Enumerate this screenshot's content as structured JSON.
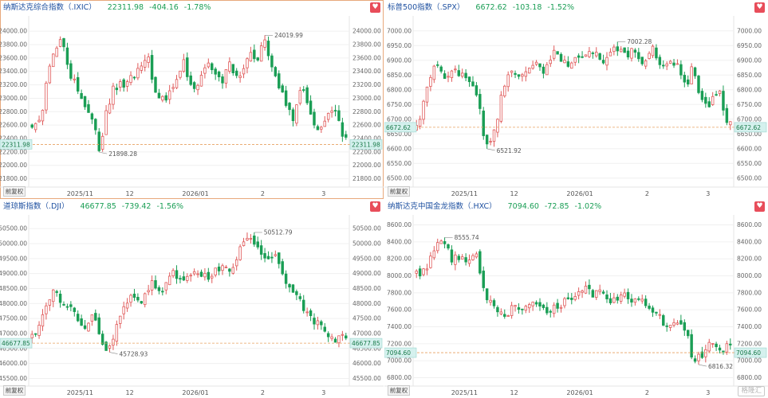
{
  "watermark": "格隆汇",
  "charts": [
    {
      "header": {
        "name": "纳斯达克综合指数（.IXIC）",
        "price": "22311.98",
        "change": "-404.16",
        "pct": "-1.78%"
      },
      "adj_button": "前复权",
      "last_tag": "22311.98",
      "annotations": {
        "high": "24019.99",
        "low": "21898.28"
      },
      "y_ticks": [
        "21800.00",
        "22000.00",
        "22200.00",
        "22400.00",
        "22600.00",
        "22800.00",
        "23000.00",
        "23200.00",
        "23400.00",
        "23600.00",
        "23800.00",
        "24000.00"
      ],
      "x_labels": [
        "2025/11",
        "12",
        "2026/01",
        "2",
        "3"
      ],
      "chart_data": {
        "type": "candlestick",
        "ylim": [
          21700,
          24180
        ],
        "last_value": 22311.98,
        "high": 24019.99,
        "low": 21898.28,
        "x_label_positions": [
          0.16,
          0.315,
          0.52,
          0.73,
          0.92
        ],
        "colors": {
          "up": "#e05a5a",
          "down": "#1a9e55",
          "last_line": "#e8a060"
        }
      }
    },
    {
      "header": {
        "name": "标普500指数（.SPX）",
        "price": "6672.62",
        "change": "-103.18",
        "pct": "-1.52%"
      },
      "adj_button": "前复权",
      "last_tag": "6672.62",
      "annotations": {
        "high": "7002.28",
        "low": "6521.92"
      },
      "y_ticks": [
        "6500.00",
        "6550.00",
        "6600.00",
        "6650.00",
        "6700.00",
        "6750.00",
        "6800.00",
        "6850.00",
        "6900.00",
        "6950.00",
        "7000.00"
      ],
      "x_labels": [
        "2025/11",
        "12",
        "2026/01",
        "2",
        "3"
      ],
      "chart_data": {
        "type": "candlestick",
        "ylim": [
          6475,
          7040
        ],
        "last_value": 6672.62,
        "high": 7002.28,
        "low": 6521.92,
        "x_label_positions": [
          0.16,
          0.315,
          0.52,
          0.73,
          0.92
        ],
        "colors": {
          "up": "#e05a5a",
          "down": "#1a9e55",
          "last_line": "#e8a060"
        }
      }
    },
    {
      "header": {
        "name": "道琼斯指数（.DJI）",
        "price": "46677.85",
        "change": "-739.42",
        "pct": "-1.56%"
      },
      "adj_button": "前复权",
      "last_tag": "46677.85",
      "annotations": {
        "high": "50512.79",
        "low": "45728.93"
      },
      "y_ticks": [
        "45500.00",
        "46000.00",
        "46500.00",
        "47000.00",
        "47500.00",
        "48000.00",
        "48500.00",
        "49000.00",
        "49500.00",
        "50000.00",
        "50500.00"
      ],
      "x_labels": [
        "2025/11",
        "12",
        "2026/01",
        "2",
        "3"
      ],
      "chart_data": {
        "type": "candlestick",
        "ylim": [
          45300,
          50850
        ],
        "last_value": 46677.85,
        "high": 50512.79,
        "low": 45728.93,
        "x_label_positions": [
          0.16,
          0.315,
          0.52,
          0.73,
          0.92
        ],
        "colors": {
          "up": "#e05a5a",
          "down": "#1a9e55",
          "last_line": "#e8a060"
        }
      }
    },
    {
      "header": {
        "name": "纳斯达克中国金龙指数（.HXC）",
        "price": "7094.60",
        "change": "-72.85",
        "pct": "-1.02%"
      },
      "adj_button": "前复权",
      "last_tag": "7094.60",
      "annotations": {
        "high": "8555.74",
        "low": "6816.32"
      },
      "y_ticks": [
        "6800.00",
        "7000.00",
        "7200.00",
        "7400.00",
        "7600.00",
        "7800.00",
        "8000.00",
        "8200.00",
        "8400.00",
        "8600.00"
      ],
      "x_labels": [
        "2025/11",
        "12",
        "2026/01",
        "2",
        "3"
      ],
      "chart_data": {
        "type": "candlestick",
        "ylim": [
          6720,
          8680
        ],
        "last_value": 7094.6,
        "high": 8555.74,
        "low": 6816.32,
        "x_label_positions": [
          0.16,
          0.315,
          0.52,
          0.73,
          0.92
        ],
        "colors": {
          "up": "#e05a5a",
          "down": "#1a9e55",
          "last_line": "#e8a060"
        }
      }
    }
  ]
}
